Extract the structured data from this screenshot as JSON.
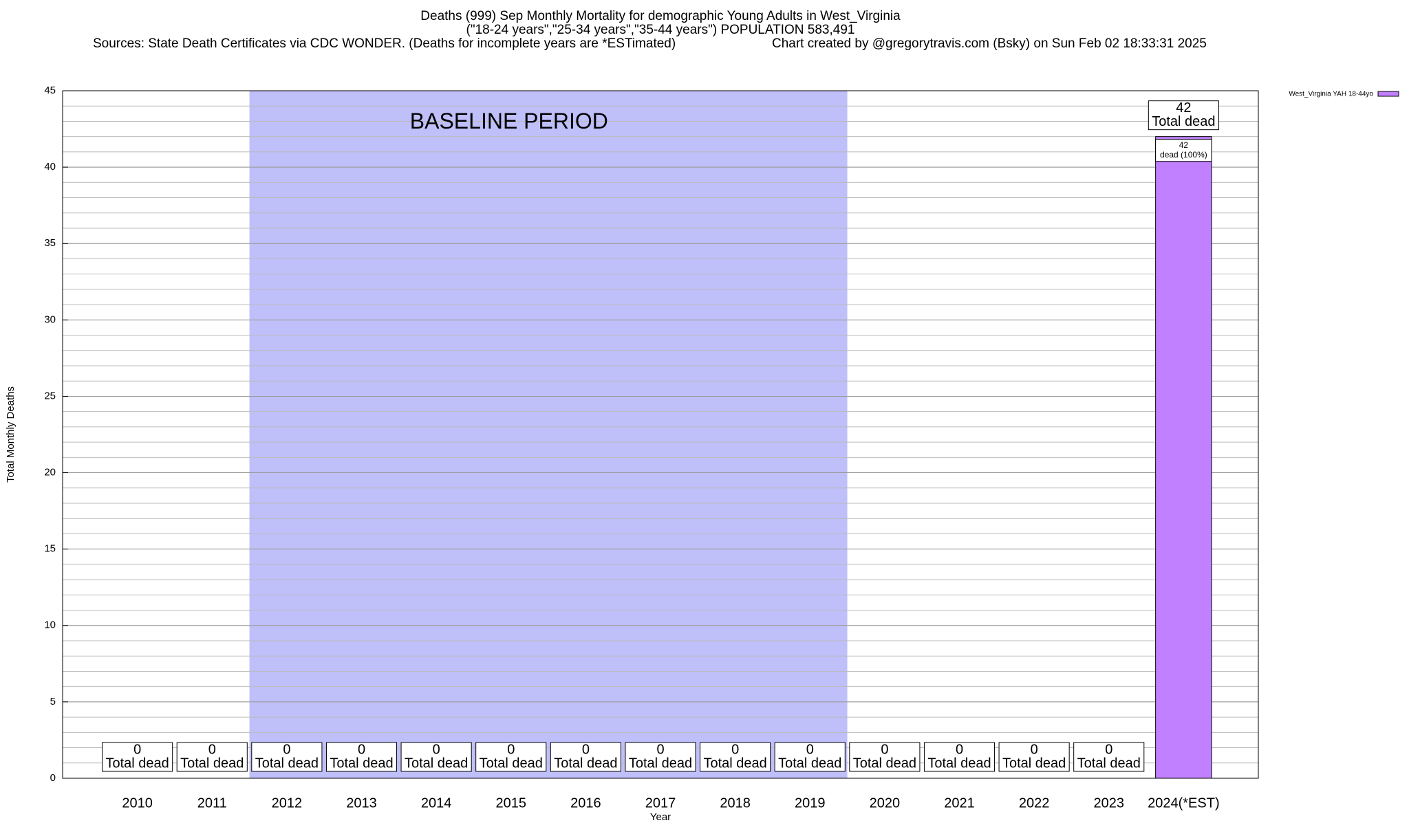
{
  "chart_data": {
    "type": "bar",
    "title": "Deaths (999) Sep Monthly Mortality for demographic Young Adults in West_Virginia",
    "subtitle": "(\"18-24 years\",\"25-34 years\",\"35-44 years\") POPULATION 583,491",
    "sources": "Sources: State Death Certificates via CDC WONDER. (Deaths for incomplete years are *ESTimated)",
    "credit": "Chart created by @gregorytravis.com (Bsky) on Sun Feb 02 18:33:31 2025",
    "x_label": "Year",
    "y_label": "Total Monthly Deaths",
    "categories": [
      "2010",
      "2011",
      "2012",
      "2013",
      "2014",
      "2015",
      "2016",
      "2017",
      "2018",
      "2019",
      "2020",
      "2021",
      "2022",
      "2023",
      "2024(*EST)"
    ],
    "series": [
      {
        "name": "West_Virginia YAH 18-44yo",
        "color": "#c080ff",
        "values": [
          0,
          0,
          0,
          0,
          0,
          0,
          0,
          0,
          0,
          0,
          0,
          0,
          0,
          0,
          42
        ],
        "segment_labels": [
          null,
          null,
          null,
          null,
          null,
          null,
          null,
          null,
          null,
          null,
          null,
          null,
          null,
          null,
          "dead (100%)"
        ]
      }
    ],
    "totals": [
      0,
      0,
      0,
      0,
      0,
      0,
      0,
      0,
      0,
      0,
      0,
      0,
      0,
      0,
      42
    ],
    "total_label": "Total dead",
    "baseline": {
      "label": "BASELINE PERIOD",
      "start": "2012",
      "end": "2019",
      "color": "#bfbffa"
    },
    "ylim": [
      0,
      45
    ],
    "yticks": [
      0,
      5,
      10,
      15,
      20,
      25,
      30,
      35,
      40,
      45
    ],
    "minor_grid": 1,
    "grid": true,
    "legend": "top-right"
  }
}
